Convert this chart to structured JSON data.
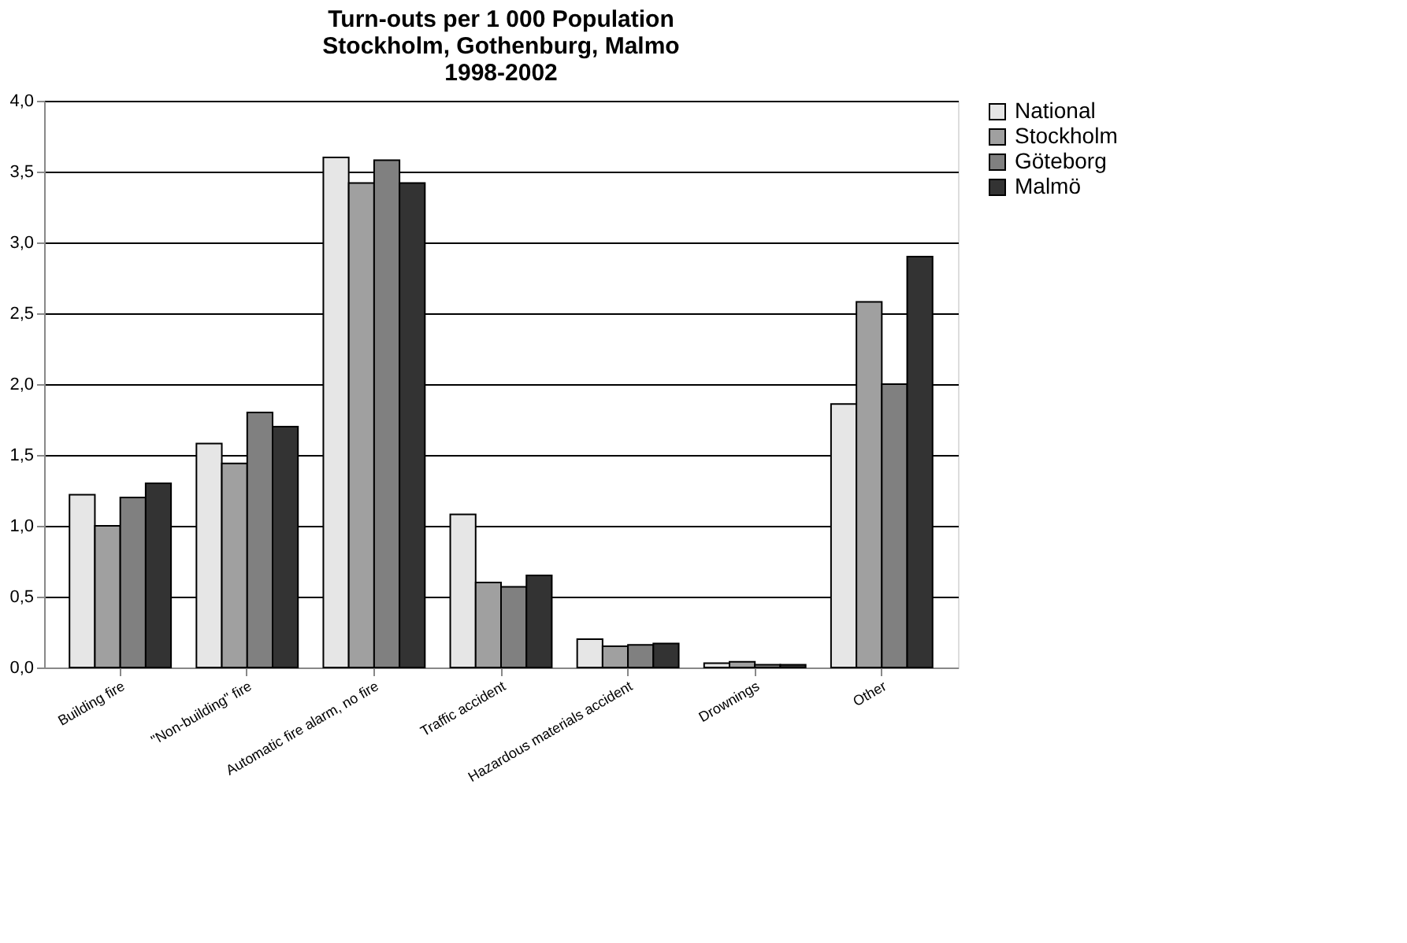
{
  "chart_data": {
    "type": "bar",
    "title": "Turn-outs per 1 000 Population\nStockholm, Gothenburg, Malmo\n1998-2002",
    "categories": [
      "Building fire",
      "\"Non-building\" fire",
      "Automatic fire alarm, no fire",
      "Traffic accident",
      "Hazardous materials accident",
      "Drownings",
      "Other"
    ],
    "series": [
      {
        "name": "National",
        "color": "#e6e6e6",
        "values": [
          1.22,
          1.58,
          3.6,
          1.08,
          0.2,
          0.03,
          1.86
        ]
      },
      {
        "name": "Stockholm",
        "color": "#a0a0a0",
        "values": [
          1.0,
          1.44,
          3.42,
          0.6,
          0.15,
          0.04,
          2.58
        ]
      },
      {
        "name": "Göteborg",
        "color": "#808080",
        "values": [
          1.2,
          1.8,
          3.58,
          0.57,
          0.16,
          0.02,
          2.0
        ]
      },
      {
        "name": "Malmö",
        "color": "#333333",
        "values": [
          1.3,
          1.7,
          3.42,
          0.65,
          0.17,
          0.02,
          2.9
        ]
      }
    ],
    "ylim": [
      0,
      4
    ],
    "yticks": [
      {
        "value": 0,
        "label": "0,0"
      },
      {
        "value": 0.5,
        "label": "0,5"
      },
      {
        "value": 1,
        "label": "1,0"
      },
      {
        "value": 1.5,
        "label": "1,5"
      },
      {
        "value": 2,
        "label": "2,0"
      },
      {
        "value": 2.5,
        "label": "2,5"
      },
      {
        "value": 3,
        "label": "3,0"
      },
      {
        "value": 3.5,
        "label": "3,5"
      },
      {
        "value": 4,
        "label": "4,0"
      }
    ],
    "grid": "y",
    "legend": "right"
  }
}
